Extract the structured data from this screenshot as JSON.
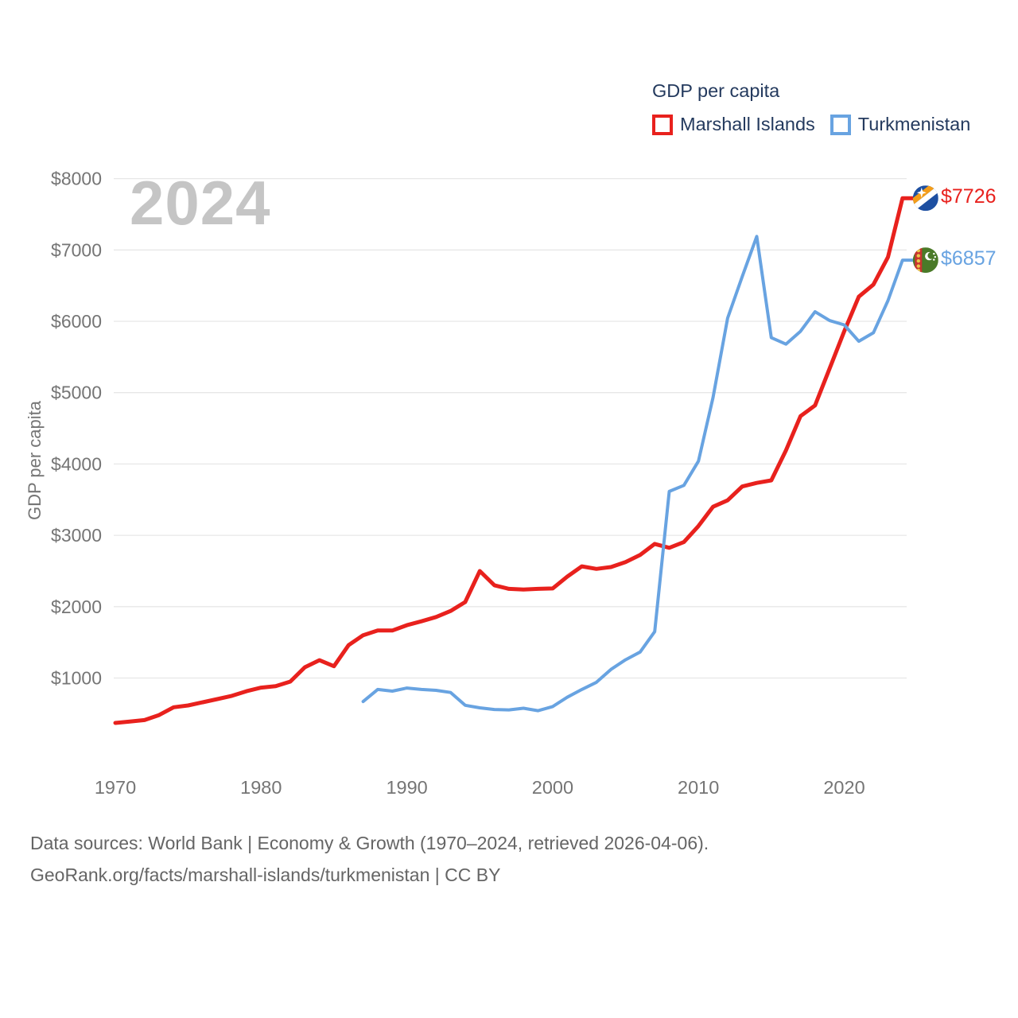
{
  "legend": {
    "title": "GDP per capita",
    "items": [
      {
        "label": "Marshall Islands",
        "color": "#e8211d"
      },
      {
        "label": "Turkmenistan",
        "color": "#68a3e1"
      }
    ]
  },
  "watermark": "2024",
  "y_axis_title": "GDP per capita",
  "end_labels": {
    "marshall_islands": "$7726",
    "turkmenistan": "$6857"
  },
  "footer": {
    "line1": "Data sources: World Bank | Economy & Growth (1970–2024, retrieved 2026-04-06).",
    "line2": "GeoRank.org/facts/marshall-islands/turkmenistan | CC BY"
  },
  "colors": {
    "marshall_islands": "#e8211d",
    "turkmenistan": "#68a3e1",
    "gridline": "#e7e7e7",
    "axis_text": "#757575"
  },
  "chart_data": {
    "type": "line",
    "title": "GDP per capita",
    "xlabel": "",
    "ylabel": "GDP per capita",
    "xlim": [
      1970,
      2024
    ],
    "ylim": [
      0,
      8000
    ],
    "grid": "horizontal",
    "legend_position": "top-right",
    "x_ticks": [
      1970,
      1980,
      1990,
      2000,
      2010,
      2020
    ],
    "y_ticks": [
      {
        "value": 8000,
        "label": "$8000"
      },
      {
        "value": 7000,
        "label": "$7000"
      },
      {
        "value": 6000,
        "label": "$6000"
      },
      {
        "value": 5000,
        "label": "$5000"
      },
      {
        "value": 4000,
        "label": "$4000"
      },
      {
        "value": 3000,
        "label": "$3000"
      },
      {
        "value": 2000,
        "label": "$2000"
      },
      {
        "value": 1000,
        "label": "$1000"
      }
    ],
    "series": [
      {
        "name": "Marshall Islands",
        "color": "#e8211d",
        "stroke_width": 5,
        "flag": "marshall-islands",
        "start_year": 1970,
        "end_label": "$7726",
        "values": [
          370,
          390,
          410,
          480,
          590,
          615,
          660,
          705,
          750,
          815,
          865,
          885,
          950,
          1150,
          1250,
          1165,
          1460,
          1600,
          1665,
          1665,
          1740,
          1795,
          1855,
          1940,
          2065,
          2500,
          2300,
          2250,
          2240,
          2250,
          2255,
          2420,
          2565,
          2530,
          2555,
          2625,
          2725,
          2880,
          2825,
          2905,
          3130,
          3400,
          3490,
          3685,
          3735,
          3770,
          4190,
          4670,
          4820,
          5340,
          5860,
          6345,
          6515,
          6900,
          7726
        ]
      },
      {
        "name": "Turkmenistan",
        "color": "#68a3e1",
        "stroke_width": 4,
        "flag": "turkmenistan",
        "start_year": 1987,
        "end_label": "$6857",
        "values": [
          670,
          840,
          816,
          860,
          840,
          827,
          797,
          618,
          582,
          559,
          553,
          576,
          542,
          600,
          730,
          840,
          940,
          1120,
          1255,
          1365,
          1650,
          3615,
          3700,
          4040,
          4930,
          6045,
          6625,
          7190,
          5770,
          5680,
          5860,
          6135,
          6010,
          5950,
          5720,
          5840,
          6290,
          6857
        ]
      }
    ]
  }
}
